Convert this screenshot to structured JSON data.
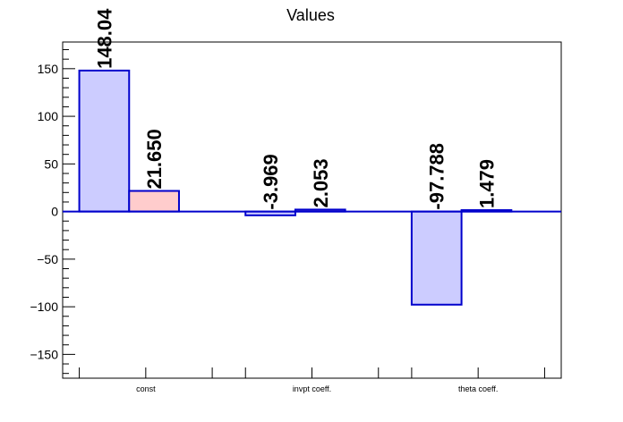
{
  "chart_data": {
    "type": "bar",
    "title": "Values",
    "xlabel": "",
    "ylabel": "",
    "categories": [
      "const",
      "invpt coeff.",
      "theta coeff."
    ],
    "series": [
      {
        "values": [
          148.04,
          -3.969,
          -97.788
        ],
        "labels": [
          "148.04",
          "-3.969",
          "-97.788"
        ],
        "fill": "#ccccff",
        "stroke": "#0000cc"
      },
      {
        "values": [
          21.65,
          2.053,
          1.479
        ],
        "labels": [
          "21.650",
          "2.053",
          "1.479"
        ],
        "fill": "#ffcccc",
        "stroke": "#0000cc"
      }
    ],
    "ylim": [
      -175,
      178
    ],
    "yticks": [
      -150,
      -100,
      -50,
      0,
      50,
      100,
      150
    ],
    "ytick_labels": [
      "−150",
      "−100",
      "−50",
      "0",
      "50",
      "100",
      "150"
    ],
    "grid": false,
    "legend": "none"
  }
}
